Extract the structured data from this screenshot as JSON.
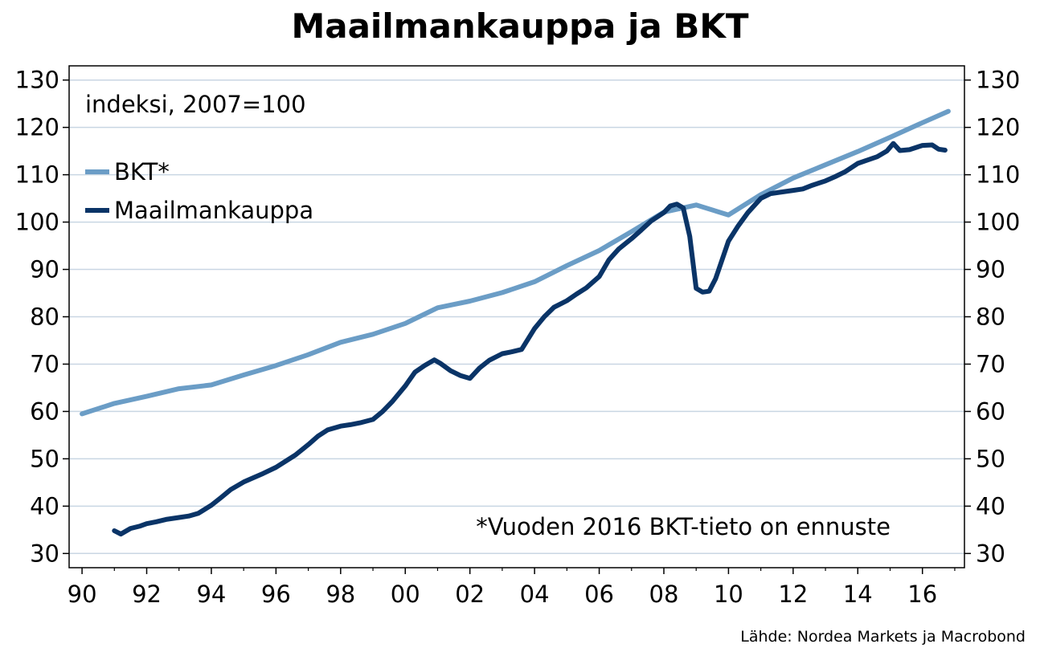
{
  "title": "Maailmankauppa ja BKT",
  "source": "Lähde: Nordea Markets ja Macrobond",
  "chart_data": {
    "type": "line",
    "title": "Maailmankauppa ja BKT",
    "ylabel_note": "indeksi, 2007=100",
    "footnote": "*Vuoden 2016 BKT-tieto on ennuste",
    "ylim": [
      27,
      133
    ],
    "xlim": [
      1989.6,
      2017.3
    ],
    "yticks": [
      30,
      40,
      50,
      60,
      70,
      80,
      90,
      100,
      110,
      120,
      130
    ],
    "xticks": [
      {
        "value": 1990,
        "label": "90"
      },
      {
        "value": 1992,
        "label": "92"
      },
      {
        "value": 1994,
        "label": "94"
      },
      {
        "value": 1996,
        "label": "96"
      },
      {
        "value": 1998,
        "label": "98"
      },
      {
        "value": 2000,
        "label": "00"
      },
      {
        "value": 2002,
        "label": "02"
      },
      {
        "value": 2004,
        "label": "04"
      },
      {
        "value": 2006,
        "label": "06"
      },
      {
        "value": 2008,
        "label": "08"
      },
      {
        "value": 2010,
        "label": "10"
      },
      {
        "value": 2012,
        "label": "12"
      },
      {
        "value": 2014,
        "label": "14"
      },
      {
        "value": 2016,
        "label": "16"
      }
    ],
    "grid": true,
    "legend_position": "top-left",
    "series": [
      {
        "name": "BKT*",
        "color": "#6b9dc6",
        "x": [
          1990.0,
          1991.0,
          1992.0,
          1993.0,
          1994.0,
          1995.0,
          1996.0,
          1997.0,
          1998.0,
          1999.0,
          2000.0,
          2001.0,
          2002.0,
          2003.0,
          2004.0,
          2005.0,
          2006.0,
          2007.0,
          2008.0,
          2009.0,
          2010.0,
          2011.0,
          2012.0,
          2013.0,
          2014.0,
          2015.0,
          2016.0,
          2016.8
        ],
        "y": [
          59.5,
          61.7,
          63.2,
          64.8,
          65.6,
          67.7,
          69.7,
          72.0,
          74.6,
          76.3,
          78.6,
          81.9,
          83.3,
          85.1,
          87.4,
          90.8,
          94.0,
          98.0,
          102.1,
          103.6,
          101.5,
          105.8,
          109.3,
          112.1,
          114.9,
          117.9,
          121.0,
          123.4
        ]
      },
      {
        "name": "Maailmankauppa",
        "color": "#0a3467",
        "x": [
          1991.0,
          1991.2,
          1991.5,
          1991.8,
          1992.0,
          1992.3,
          1992.6,
          1993.0,
          1993.3,
          1993.6,
          1994.0,
          1994.3,
          1994.6,
          1995.0,
          1995.3,
          1995.6,
          1996.0,
          1996.3,
          1996.6,
          1997.0,
          1997.3,
          1997.6,
          1998.0,
          1998.3,
          1998.6,
          1999.0,
          1999.3,
          1999.6,
          2000.0,
          2000.3,
          2000.6,
          2000.9,
          2001.1,
          2001.4,
          2001.7,
          2002.0,
          2002.3,
          2002.6,
          2003.0,
          2003.3,
          2003.6,
          2004.0,
          2004.3,
          2004.6,
          2005.0,
          2005.3,
          2005.6,
          2006.0,
          2006.3,
          2006.6,
          2007.0,
          2007.3,
          2007.6,
          2008.0,
          2008.2,
          2008.4,
          2008.6,
          2008.8,
          2009.0,
          2009.2,
          2009.4,
          2009.6,
          2009.8,
          2010.0,
          2010.3,
          2010.6,
          2011.0,
          2011.3,
          2011.6,
          2012.0,
          2012.3,
          2012.6,
          2013.0,
          2013.3,
          2013.6,
          2014.0,
          2014.3,
          2014.6,
          2014.9,
          2015.1,
          2015.3,
          2015.6,
          2016.0,
          2016.3,
          2016.5,
          2016.7
        ],
        "y": [
          34.8,
          34.1,
          35.3,
          35.8,
          36.3,
          36.7,
          37.2,
          37.6,
          37.9,
          38.5,
          40.2,
          41.8,
          43.5,
          45.1,
          46.0,
          46.9,
          48.2,
          49.5,
          50.8,
          53.0,
          54.8,
          56.1,
          56.9,
          57.2,
          57.6,
          58.3,
          60.0,
          62.1,
          65.4,
          68.3,
          69.7,
          70.9,
          70.1,
          68.6,
          67.6,
          67.0,
          69.2,
          70.8,
          72.2,
          72.6,
          73.1,
          77.5,
          80.0,
          82.0,
          83.4,
          84.8,
          86.1,
          88.5,
          92.0,
          94.3,
          96.5,
          98.3,
          100.2,
          102.0,
          103.4,
          103.8,
          103.0,
          97.0,
          86.0,
          85.2,
          85.4,
          88.0,
          92.0,
          96.0,
          99.2,
          102.0,
          105.0,
          106.0,
          106.3,
          106.7,
          107.0,
          107.8,
          108.7,
          109.6,
          110.6,
          112.4,
          113.1,
          113.8,
          115.0,
          116.6,
          115.1,
          115.3,
          116.2,
          116.3,
          115.4,
          115.2
        ]
      }
    ]
  }
}
